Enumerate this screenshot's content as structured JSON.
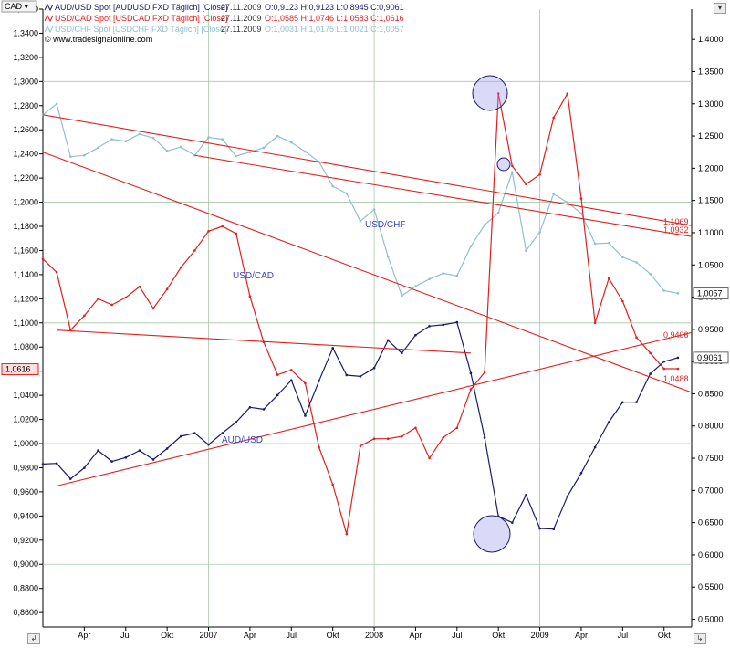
{
  "chart_data": {
    "type": "line",
    "watermark": "© www.tradesignalonline.com",
    "currency_selector": "CAD",
    "legend": [
      {
        "name": "AUD/USD Spot [AUDUSD FXD  Täglich] [Close]",
        "date": "27.11.2009",
        "ohlc": "O:0,9123 H:0,9123 L:0,8945 C:0,9061",
        "color": "#1a1a6e"
      },
      {
        "name": "USD/CAD Spot [USDCAD FXD  Täglich] [Close]",
        "date": "27.11.2009",
        "ohlc": "O:1,0585 H:1,0746 L:1,0583 C:1,0616",
        "color": "#e02020"
      },
      {
        "name": "USD/CHF Spot [USDCHF FXD  Täglich] [Close]",
        "date": "27.11.2009",
        "ohlc": "O:1,0031 H:1,0175 L:1,0021 C:1,0057",
        "color": "#8fc0d0"
      }
    ],
    "x_ticks": [
      "Apr",
      "Jul",
      "Okt",
      "2007",
      "Apr",
      "Jul",
      "Okt",
      "2008",
      "Apr",
      "Jul",
      "Okt",
      "2009",
      "Apr",
      "Jul",
      "Okt"
    ],
    "x_range": [
      "2006-01",
      "2009-12"
    ],
    "left_axis": {
      "ylim": [
        0.848,
        1.36
      ],
      "ticks": [
        "1,3600",
        "1,3400",
        "1,3200",
        "1,3000",
        "1,2800",
        "1,2600",
        "1,2400",
        "1,2200",
        "1,2000",
        "1,1800",
        "1,1600",
        "1,1400",
        "1,1200",
        "1,1000",
        "1,0800",
        "1,0600",
        "1,0400",
        "1,0200",
        "1,0000",
        "0,9800",
        "0,9600",
        "0,9400",
        "0,9200",
        "0,9000",
        "0,8800",
        "0,8600"
      ],
      "current_label": "1,0616"
    },
    "right_axis": {
      "ylim": [
        0.488,
        1.447
      ],
      "ticks": [
        "1,4000",
        "1,3500",
        "1,3000",
        "1,2500",
        "1,2000",
        "1,1500",
        "1,1000",
        "1,0500",
        "1,0000",
        "0,9500",
        "0,9000",
        "0,8500",
        "0,8000",
        "0,7500",
        "0,7000",
        "0,6500",
        "0,6000",
        "0,5500",
        "0,5000"
      ],
      "current_labels": [
        "1,0057",
        "0,9061"
      ]
    },
    "series": [
      {
        "name": "AUD/USD",
        "axis": "right",
        "color": "#1a1a6e",
        "points": [
          [
            "2006-01",
            0.741
          ],
          [
            "2006-02",
            0.742
          ],
          [
            "2006-03",
            0.718
          ],
          [
            "2006-04",
            0.735
          ],
          [
            "2006-05",
            0.762
          ],
          [
            "2006-06",
            0.745
          ],
          [
            "2006-07",
            0.751
          ],
          [
            "2006-08",
            0.762
          ],
          [
            "2006-09",
            0.748
          ],
          [
            "2006-10",
            0.765
          ],
          [
            "2006-11",
            0.784
          ],
          [
            "2006-12",
            0.789
          ],
          [
            "2007-01",
            0.771
          ],
          [
            "2007-02",
            0.789
          ],
          [
            "2007-03",
            0.806
          ],
          [
            "2007-04",
            0.829
          ],
          [
            "2007-05",
            0.826
          ],
          [
            "2007-06",
            0.848
          ],
          [
            "2007-07",
            0.871
          ],
          [
            "2007-08",
            0.816
          ],
          [
            "2007-09",
            0.87
          ],
          [
            "2007-10",
            0.921
          ],
          [
            "2007-11",
            0.879
          ],
          [
            "2007-12",
            0.877
          ],
          [
            "2008-01",
            0.89
          ],
          [
            "2008-02",
            0.933
          ],
          [
            "2008-03",
            0.913
          ],
          [
            "2008-04",
            0.941
          ],
          [
            "2008-05",
            0.955
          ],
          [
            "2008-06",
            0.957
          ],
          [
            "2008-07",
            0.961
          ],
          [
            "2008-08",
            0.882
          ],
          [
            "2008-09",
            0.782
          ],
          [
            "2008-10",
            0.66
          ],
          [
            "2008-11",
            0.65
          ],
          [
            "2008-12",
            0.693
          ],
          [
            "2009-01",
            0.641
          ],
          [
            "2009-02",
            0.64
          ],
          [
            "2009-03",
            0.691
          ],
          [
            "2009-04",
            0.727
          ],
          [
            "2009-05",
            0.767
          ],
          [
            "2009-06",
            0.806
          ],
          [
            "2009-07",
            0.837
          ],
          [
            "2009-08",
            0.837
          ],
          [
            "2009-09",
            0.881
          ],
          [
            "2009-10",
            0.9
          ],
          [
            "2009-11",
            0.906
          ]
        ]
      },
      {
        "name": "USD/CAD",
        "axis": "left",
        "color": "#e02020",
        "points": [
          [
            "2006-01",
            1.153
          ],
          [
            "2006-02",
            1.142
          ],
          [
            "2006-03",
            1.094
          ],
          [
            "2006-04",
            1.106
          ],
          [
            "2006-05",
            1.12
          ],
          [
            "2006-06",
            1.115
          ],
          [
            "2006-07",
            1.121
          ],
          [
            "2006-08",
            1.13
          ],
          [
            "2006-09",
            1.112
          ],
          [
            "2006-10",
            1.128
          ],
          [
            "2006-11",
            1.146
          ],
          [
            "2006-12",
            1.16
          ],
          [
            "2007-01",
            1.176
          ],
          [
            "2007-02",
            1.18
          ],
          [
            "2007-03",
            1.174
          ],
          [
            "2007-04",
            1.122
          ],
          [
            "2007-05",
            1.084
          ],
          [
            "2007-06",
            1.057
          ],
          [
            "2007-07",
            1.061
          ],
          [
            "2007-08",
            1.05
          ],
          [
            "2007-09",
            0.997
          ],
          [
            "2007-10",
            0.966
          ],
          [
            "2007-11",
            0.925
          ],
          [
            "2007-12",
            0.998
          ],
          [
            "2008-01",
            1.004
          ],
          [
            "2008-02",
            1.004
          ],
          [
            "2008-03",
            1.006
          ],
          [
            "2008-04",
            1.013
          ],
          [
            "2008-05",
            0.988
          ],
          [
            "2008-06",
            1.005
          ],
          [
            "2008-07",
            1.013
          ],
          [
            "2008-08",
            1.045
          ],
          [
            "2008-09",
            1.059
          ],
          [
            "2008-10",
            1.29
          ],
          [
            "2008-11",
            1.23
          ],
          [
            "2008-12",
            1.215
          ],
          [
            "2009-01",
            1.223
          ],
          [
            "2009-02",
            1.27
          ],
          [
            "2009-03",
            1.29
          ],
          [
            "2009-04",
            1.203
          ],
          [
            "2009-05",
            1.1
          ],
          [
            "2009-06",
            1.137
          ],
          [
            "2009-07",
            1.118
          ],
          [
            "2009-08",
            1.088
          ],
          [
            "2009-09",
            1.075
          ],
          [
            "2009-10",
            1.062
          ],
          [
            "2009-11",
            1.062
          ]
        ]
      },
      {
        "name": "USD/CHF",
        "axis": "right",
        "color": "#8fc0d0",
        "points": [
          [
            "2006-01",
            1.283
          ],
          [
            "2006-02",
            1.3
          ],
          [
            "2006-03",
            1.218
          ],
          [
            "2006-04",
            1.22
          ],
          [
            "2006-05",
            1.232
          ],
          [
            "2006-06",
            1.245
          ],
          [
            "2006-07",
            1.242
          ],
          [
            "2006-08",
            1.253
          ],
          [
            "2006-09",
            1.247
          ],
          [
            "2006-10",
            1.227
          ],
          [
            "2006-11",
            1.233
          ],
          [
            "2006-12",
            1.22
          ],
          [
            "2007-01",
            1.248
          ],
          [
            "2007-02",
            1.245
          ],
          [
            "2007-03",
            1.219
          ],
          [
            "2007-04",
            1.225
          ],
          [
            "2007-05",
            1.232
          ],
          [
            "2007-06",
            1.25
          ],
          [
            "2007-07",
            1.24
          ],
          [
            "2007-08",
            1.226
          ],
          [
            "2007-09",
            1.21
          ],
          [
            "2007-10",
            1.172
          ],
          [
            "2007-11",
            1.161
          ],
          [
            "2007-12",
            1.118
          ],
          [
            "2008-01",
            1.136
          ],
          [
            "2008-02",
            1.063
          ],
          [
            "2008-03",
            1.002
          ],
          [
            "2008-04",
            1.017
          ],
          [
            "2008-05",
            1.028
          ],
          [
            "2008-06",
            1.037
          ],
          [
            "2008-07",
            1.033
          ],
          [
            "2008-08",
            1.079
          ],
          [
            "2008-09",
            1.112
          ],
          [
            "2008-10",
            1.131
          ],
          [
            "2008-11",
            1.194
          ],
          [
            "2008-12",
            1.072
          ],
          [
            "2009-01",
            1.101
          ],
          [
            "2009-02",
            1.16
          ],
          [
            "2009-03",
            1.147
          ],
          [
            "2009-04",
            1.13
          ],
          [
            "2009-05",
            1.083
          ],
          [
            "2009-06",
            1.084
          ],
          [
            "2009-07",
            1.062
          ],
          [
            "2009-08",
            1.054
          ],
          [
            "2009-09",
            1.036
          ],
          [
            "2009-10",
            1.01
          ],
          [
            "2009-11",
            1.006
          ]
        ]
      }
    ],
    "series_labels": [
      {
        "text": "USD/CHF",
        "color": "#3a44c0"
      },
      {
        "text": "USD/CAD",
        "color": "#3a44c0"
      },
      {
        "text": "AUD/USD",
        "color": "#3a44c0"
      }
    ],
    "trendline_labels": [
      "1,1069",
      "1,0932",
      "0,9406",
      "1,0488"
    ]
  }
}
